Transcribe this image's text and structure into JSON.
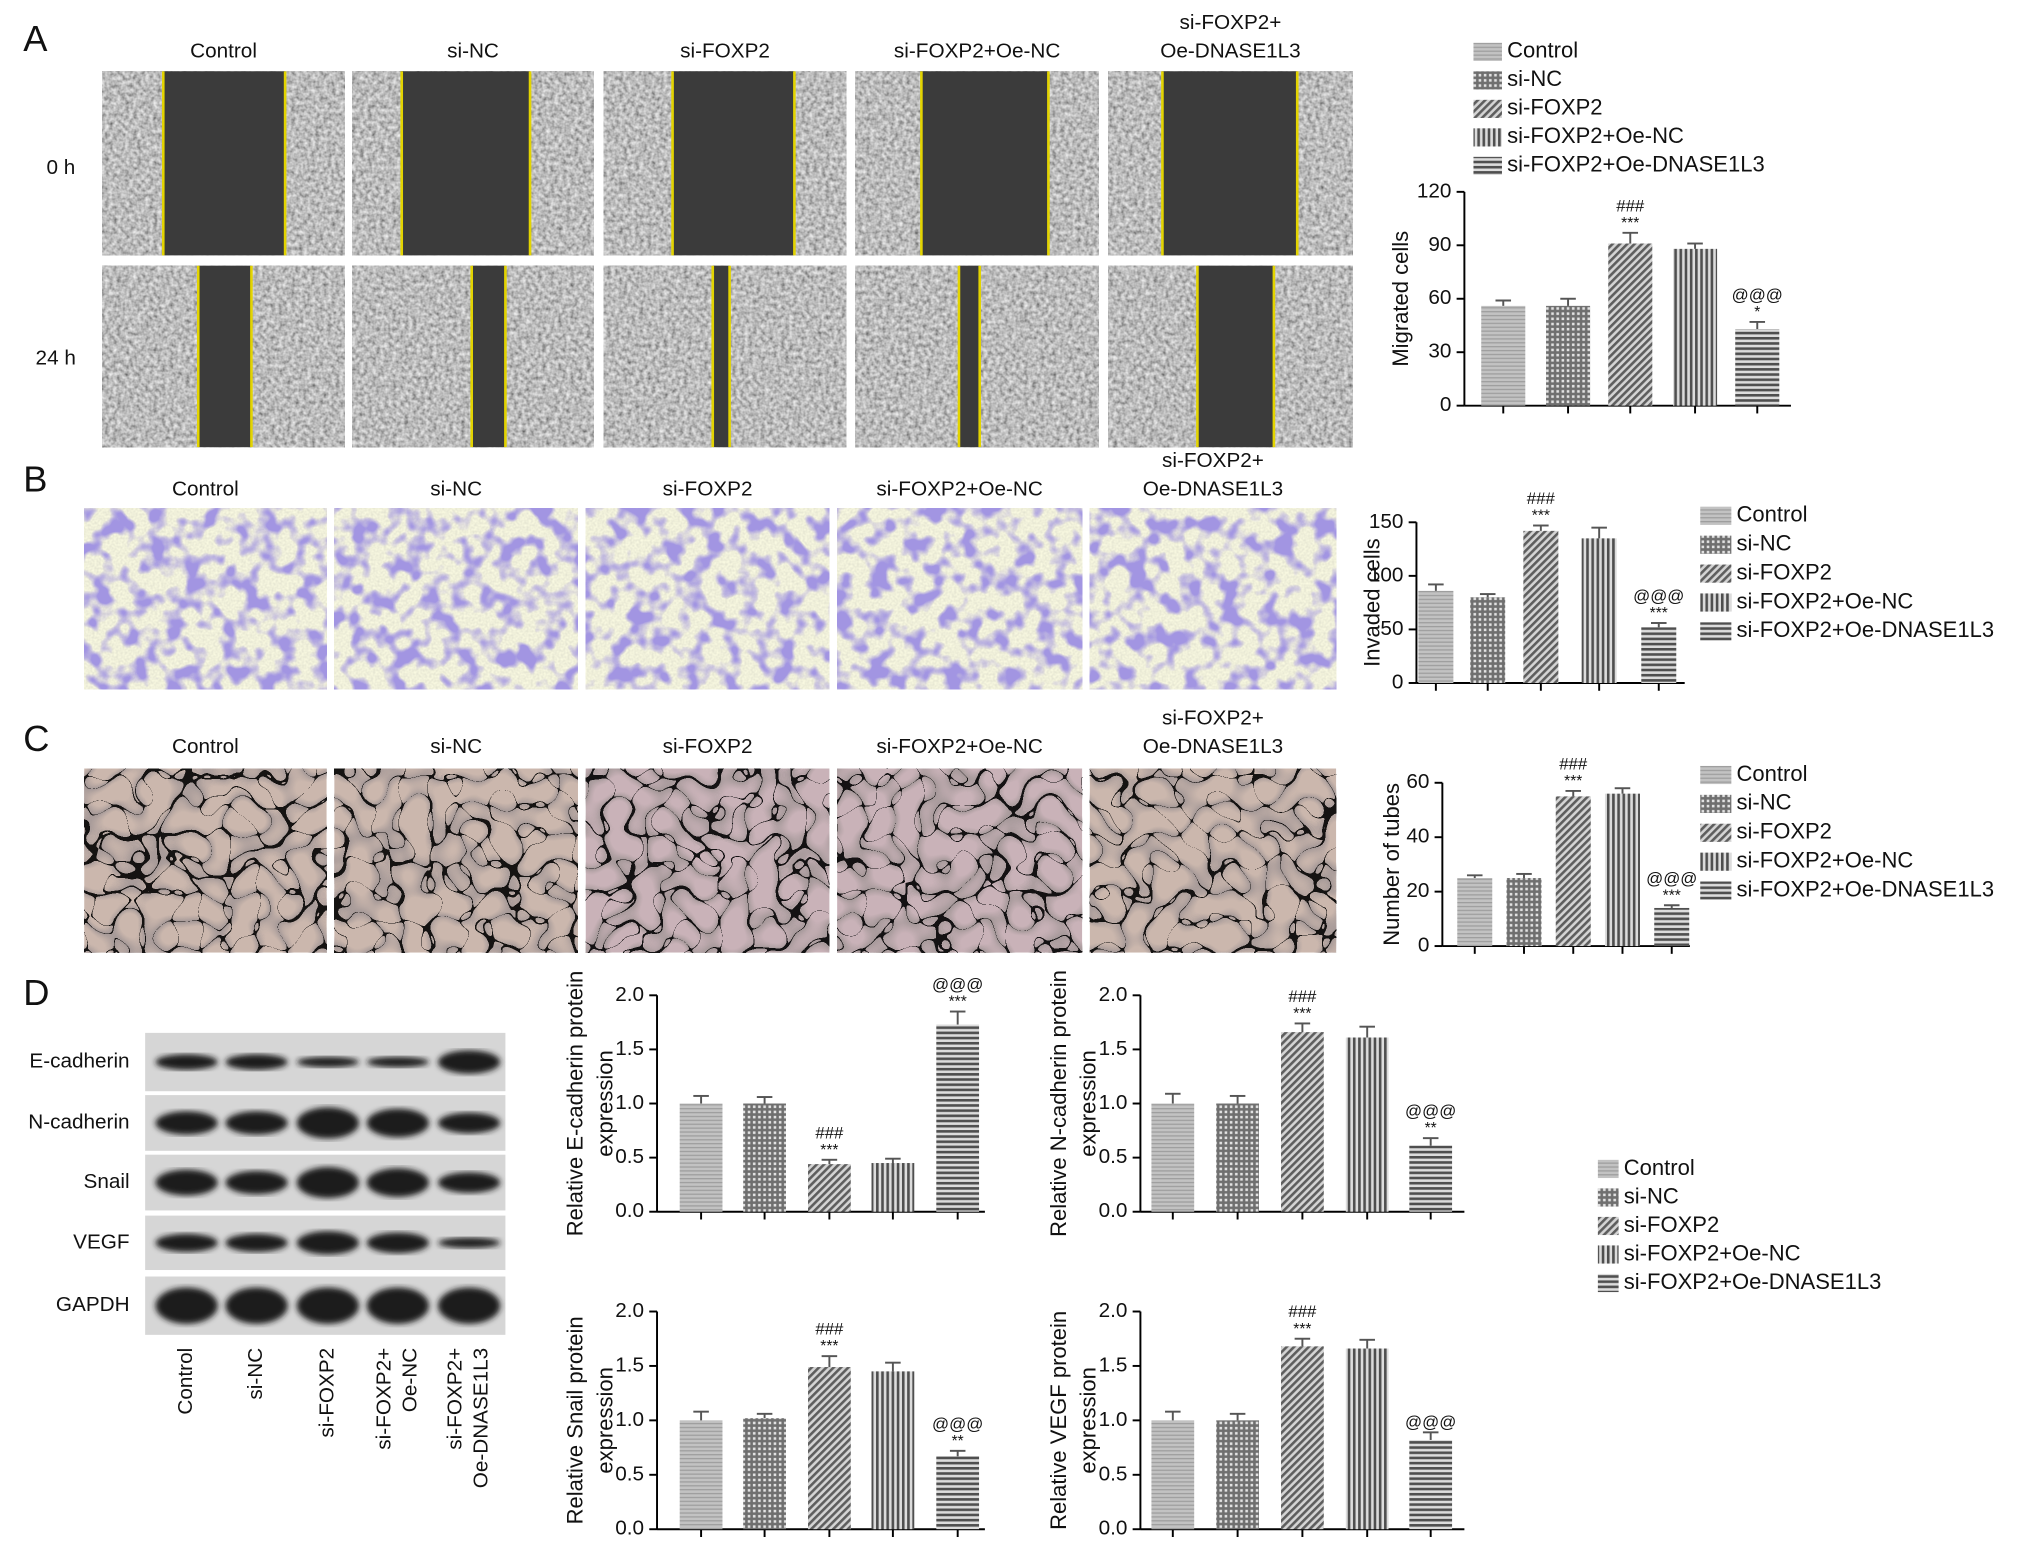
{
  "panel_letters": [
    "A",
    "B",
    "C",
    "D"
  ],
  "micrograph_titles": [
    "Control",
    "si-NC",
    "si-FOXP2",
    "si-FOXP2+Oe-NC",
    [
      "si-FOXP2+",
      "Oe-DNASE1L3"
    ]
  ],
  "time_labels": [
    "0 h",
    "24 h"
  ],
  "blot": {
    "proteins": [
      "E-cadherin",
      "N-cadherin",
      "Snail",
      "VEGF",
      "GAPDH"
    ],
    "lanes": [
      "Control",
      "si-NC",
      "si-FOXP2",
      [
        "si-FOXP2+",
        "Oe-NC"
      ],
      [
        "si-FOXP2+",
        "Oe-DNASE1L3"
      ]
    ]
  },
  "chart_data": [
    {
      "type": "bar",
      "ylabel": [
        "Migrated cells"
      ],
      "legend": "top",
      "categories": [
        "Control",
        "si-NC",
        "si-FOXP2",
        "si-FOXP2+Oe-NC",
        "si-FOXP2+Oe-DNASE1L3"
      ],
      "values": [
        56,
        56,
        91,
        88,
        43
      ],
      "errors": [
        3,
        4,
        6,
        3,
        4
      ],
      "annotations": [
        null,
        null,
        [
          "###",
          "***"
        ],
        null,
        [
          "@@@",
          "*"
        ]
      ],
      "ylim": [
        0,
        120
      ],
      "yticks": [
        0,
        30,
        60,
        90,
        120
      ]
    },
    {
      "type": "bar",
      "ylabel": [
        "Invaded cells"
      ],
      "legend": "right",
      "categories": [
        "Control",
        "si-NC",
        "si-FOXP2",
        "si-FOXP2+Oe-NC",
        "si-FOXP2+Oe-DNASE1L3"
      ],
      "values": [
        86,
        80,
        142,
        135,
        52
      ],
      "errors": [
        6,
        3,
        5,
        10,
        4
      ],
      "annotations": [
        null,
        null,
        [
          "###",
          "***"
        ],
        null,
        [
          "@@@",
          "***"
        ]
      ],
      "ylim": [
        0,
        150
      ],
      "yticks": [
        0,
        50,
        100,
        150
      ]
    },
    {
      "type": "bar",
      "ylabel": [
        "Number of tubes"
      ],
      "legend": "right",
      "categories": [
        "Control",
        "si-NC",
        "si-FOXP2",
        "si-FOXP2+Oe-NC",
        "si-FOXP2+Oe-DNASE1L3"
      ],
      "values": [
        25,
        25,
        55,
        56,
        14
      ],
      "errors": [
        1,
        1.5,
        2,
        2,
        1
      ],
      "annotations": [
        null,
        null,
        [
          "###",
          "***"
        ],
        null,
        [
          "@@@",
          "***"
        ]
      ],
      "ylim": [
        0,
        60
      ],
      "yticks": [
        0,
        20,
        40,
        60
      ]
    },
    {
      "type": "bar",
      "ylabel": [
        "Relative E-cadherin protein",
        "expression"
      ],
      "legend": "right",
      "categories": [
        "Control",
        "si-NC",
        "si-FOXP2",
        "si-FOXP2+Oe-NC",
        "si-FOXP2+Oe-DNASE1L3"
      ],
      "values": [
        1.0,
        1.0,
        0.44,
        0.45,
        1.73
      ],
      "errors": [
        0.07,
        0.06,
        0.04,
        0.04,
        0.12
      ],
      "annotations": [
        null,
        null,
        [
          "###",
          "***"
        ],
        null,
        [
          "@@@",
          "***"
        ]
      ],
      "ylim": [
        0,
        2
      ],
      "yticks": [
        {
          "value": 0,
          "label": "0.0"
        },
        {
          "value": 0.5,
          "label": "0.5"
        },
        {
          "value": 1,
          "label": "1.0"
        },
        {
          "value": 1.5,
          "label": "1.5"
        },
        {
          "value": 2,
          "label": "2.0"
        }
      ]
    },
    {
      "type": "bar",
      "ylabel": [
        "Relative N-cadherin protein",
        "expression"
      ],
      "values": [
        1.0,
        1.0,
        1.66,
        1.61,
        0.61
      ],
      "errors": [
        0.09,
        0.07,
        0.08,
        0.1,
        0.07
      ],
      "annotations": [
        null,
        null,
        [
          "###",
          "***"
        ],
        null,
        [
          "@@@",
          "**"
        ]
      ],
      "ylim": [
        0,
        2
      ],
      "yticks": [
        {
          "value": 0,
          "label": "0.0"
        },
        {
          "value": 0.5,
          "label": "0.5"
        },
        {
          "value": 1,
          "label": "1.0"
        },
        {
          "value": 1.5,
          "label": "1.5"
        },
        {
          "value": 2,
          "label": "2.0"
        }
      ]
    },
    {
      "type": "bar",
      "ylabel": [
        "Relative Snail protein",
        "expression"
      ],
      "values": [
        1.0,
        1.02,
        1.49,
        1.45,
        0.67
      ],
      "errors": [
        0.08,
        0.04,
        0.1,
        0.08,
        0.05
      ],
      "annotations": [
        null,
        null,
        [
          "###",
          "***"
        ],
        null,
        [
          "@@@",
          "**"
        ]
      ],
      "ylim": [
        0,
        2
      ],
      "yticks": [
        {
          "value": 0,
          "label": "0.0"
        },
        {
          "value": 0.5,
          "label": "0.5"
        },
        {
          "value": 1,
          "label": "1.0"
        },
        {
          "value": 1.5,
          "label": "1.5"
        },
        {
          "value": 2,
          "label": "2.0"
        }
      ]
    },
    {
      "type": "bar",
      "ylabel": [
        "Relative VEGF protein",
        "expression"
      ],
      "values": [
        1.0,
        1.0,
        1.68,
        1.66,
        0.82
      ],
      "errors": [
        0.08,
        0.06,
        0.07,
        0.08,
        0.07
      ],
      "annotations": [
        null,
        null,
        [
          "###",
          "***"
        ],
        null,
        [
          "@@@"
        ]
      ],
      "ylim": [
        0,
        2
      ],
      "yticks": [
        {
          "value": 0,
          "label": "0.0"
        },
        {
          "value": 0.5,
          "label": "0.5"
        },
        {
          "value": 1,
          "label": "1.0"
        },
        {
          "value": 1.5,
          "label": "1.5"
        },
        {
          "value": 2,
          "label": "2.0"
        }
      ]
    }
  ]
}
